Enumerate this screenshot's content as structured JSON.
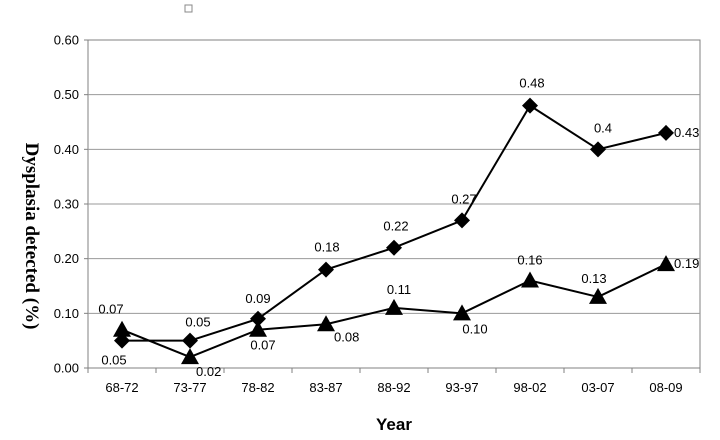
{
  "chart_data": {
    "type": "line",
    "xlabel": "Year",
    "ylabel": "Dysplasia detected (%)",
    "ylim": [
      0,
      0.6
    ],
    "yticks": [
      "0.00",
      "0.10",
      "0.20",
      "0.30",
      "0.40",
      "0.50",
      "0.60"
    ],
    "categories": [
      "68-72",
      "73-77",
      "78-82",
      "83-87",
      "88-92",
      "93-97",
      "98-02",
      "03-07",
      "08-09"
    ],
    "grid": "horizontal",
    "legend": "none",
    "series": [
      {
        "marker": "diamond",
        "values": [
          0.05,
          0.05,
          0.09,
          0.18,
          0.22,
          0.27,
          0.48,
          0.4,
          0.43
        ],
        "labels": [
          "0.05",
          "0.05",
          "0.09",
          "0.18",
          "0.22",
          "0.27",
          "0.48",
          "0.4",
          "0.43"
        ]
      },
      {
        "marker": "triangle",
        "values": [
          0.07,
          0.02,
          0.07,
          0.08,
          0.11,
          0.1,
          0.16,
          0.13,
          0.19
        ],
        "labels": [
          "0.07",
          "0.02",
          "0.07",
          "0.08",
          "0.11",
          "0.10",
          "0.16",
          "0.13",
          "0.19"
        ]
      }
    ],
    "colors": {
      "line": "#000000",
      "grid": "#9a9a9a",
      "frame": "#808080"
    }
  }
}
